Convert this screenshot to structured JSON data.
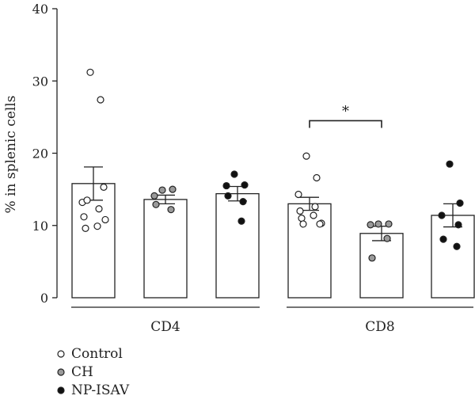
{
  "chart_data": {
    "type": "bar",
    "ylabel": "% in splenic cells",
    "ylim": [
      0,
      40
    ],
    "yticks": [
      0,
      10,
      20,
      30,
      40
    ],
    "groups": [
      "CD4",
      "CD8"
    ],
    "legend_position": "bottom-left",
    "series": [
      {
        "name": "Control",
        "marker": "open",
        "color": "#ffffff"
      },
      {
        "name": "CH",
        "marker": "gray",
        "color": "#9a9a9a"
      },
      {
        "name": "NP-ISAV",
        "marker": "black",
        "color": "#111111"
      }
    ],
    "bars": [
      {
        "group": "CD4",
        "series": "Control",
        "mean": 15.8,
        "sem": 2.3,
        "points": [
          31.2,
          27.4,
          13.2,
          12.3,
          11.2,
          9.9,
          9.6,
          10.8,
          13.5,
          15.3
        ]
      },
      {
        "group": "CD4",
        "series": "CH",
        "mean": 13.6,
        "sem": 0.6,
        "points": [
          14.9,
          15.0,
          14.1,
          12.2,
          12.9
        ]
      },
      {
        "group": "CD4",
        "series": "NP-ISAV",
        "mean": 14.4,
        "sem": 1.0,
        "points": [
          17.1,
          15.6,
          15.5,
          13.3,
          14.1,
          10.6
        ]
      },
      {
        "group": "CD8",
        "series": "Control",
        "mean": 13.0,
        "sem": 0.9,
        "points": [
          19.6,
          16.6,
          14.3,
          12.6,
          12.0,
          11.4,
          11.0,
          10.3,
          10.2,
          10.2
        ]
      },
      {
        "group": "CD8",
        "series": "CH",
        "mean": 8.9,
        "sem": 1.0,
        "points": [
          10.2,
          10.2,
          10.1,
          8.2,
          5.5
        ]
      },
      {
        "group": "CD8",
        "series": "NP-ISAV",
        "mean": 11.4,
        "sem": 1.6,
        "points": [
          18.5,
          13.1,
          11.4,
          10.1,
          8.1,
          7.1
        ]
      }
    ],
    "annotations": [
      {
        "text": "*",
        "from": {
          "group": "CD8",
          "series": "Control"
        },
        "to": {
          "group": "CD8",
          "series": "CH"
        },
        "y": 24.5
      }
    ]
  }
}
